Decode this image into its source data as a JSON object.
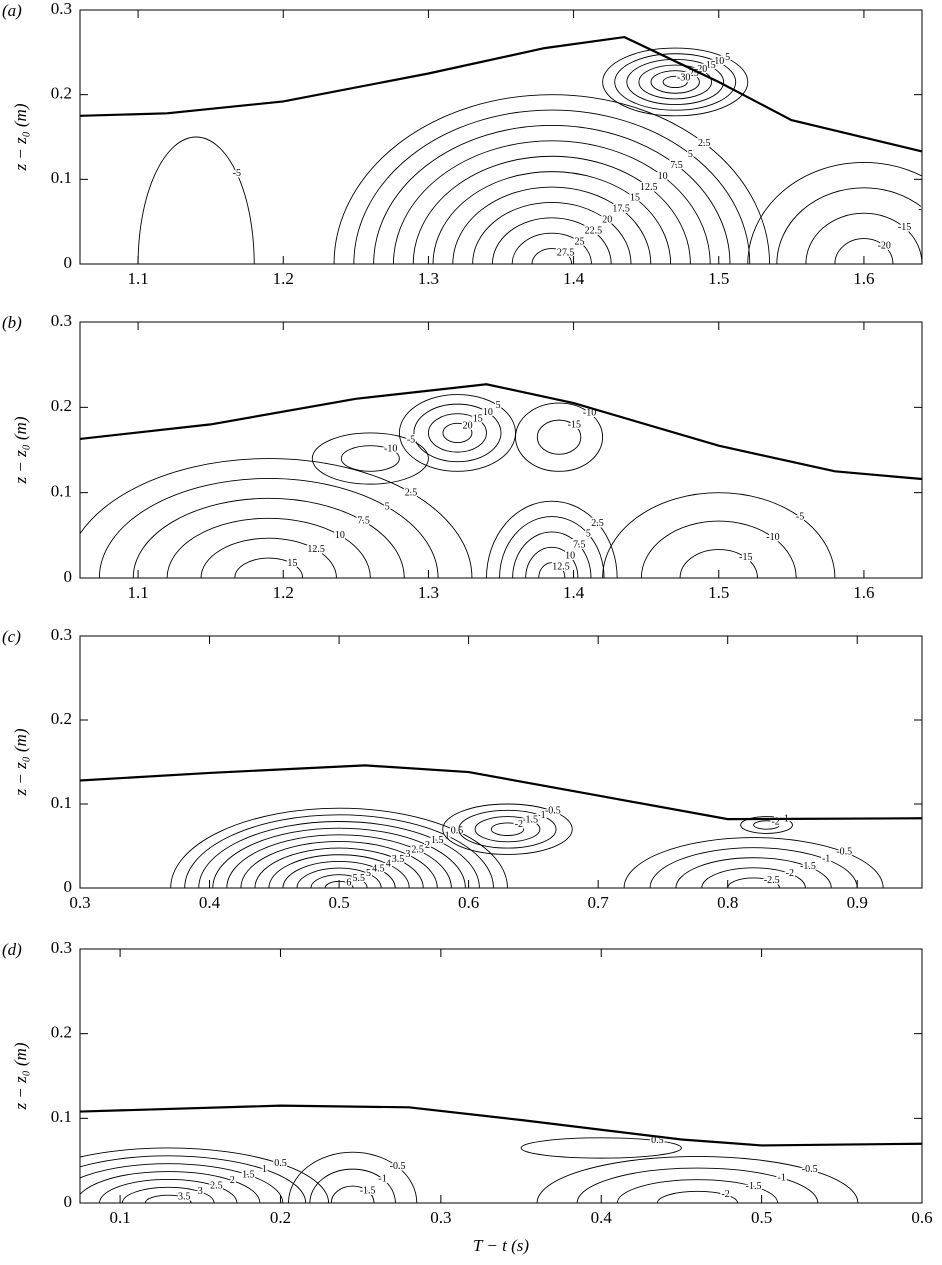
{
  "chart_data": [
    {
      "type": "contour",
      "panel": "(a)",
      "ylabel": "z − z₀ (m)",
      "xlim": [
        1.06,
        1.64
      ],
      "ylim": [
        0,
        0.3
      ],
      "xticks": [
        1.1,
        1.2,
        1.3,
        1.4,
        1.5,
        1.6
      ],
      "yticks": [
        0,
        0.1,
        0.2,
        0.3
      ],
      "surface": {
        "x": [
          1.06,
          1.12,
          1.2,
          1.3,
          1.38,
          1.435,
          1.5,
          1.55,
          1.64
        ],
        "y": [
          0.175,
          0.178,
          0.192,
          0.225,
          0.255,
          0.268,
          0.215,
          0.17,
          0.133
        ]
      },
      "cells": [
        {
          "center": [
            1.385,
            0
          ],
          "radius": [
            0.15,
            0.2
          ],
          "levels": [
            2.5,
            5,
            7.5,
            10,
            12.5,
            15,
            17.5,
            20,
            22.5,
            25,
            27.5
          ]
        },
        {
          "center": [
            1.47,
            0.215
          ],
          "radius": [
            0.05,
            0.04
          ],
          "levels": [
            -5,
            -10,
            -15,
            -20,
            -25,
            -30
          ]
        },
        {
          "center": [
            1.6,
            0
          ],
          "radius": [
            0.08,
            0.12
          ],
          "levels": [
            -5,
            -10,
            -15,
            -20
          ]
        },
        {
          "center": [
            1.14,
            0
          ],
          "radius": [
            0.04,
            0.15
          ],
          "levels": [
            -5
          ]
        }
      ]
    },
    {
      "type": "contour",
      "panel": "(b)",
      "ylabel": "z − z₀ (m)",
      "xlim": [
        1.06,
        1.64
      ],
      "ylim": [
        0,
        0.3
      ],
      "xticks": [
        1.1,
        1.2,
        1.3,
        1.4,
        1.5,
        1.6
      ],
      "yticks": [
        0,
        0.1,
        0.2,
        0.3
      ],
      "surface": {
        "x": [
          1.06,
          1.15,
          1.25,
          1.34,
          1.4,
          1.5,
          1.58,
          1.64
        ],
        "y": [
          0.163,
          0.18,
          0.21,
          0.227,
          0.205,
          0.155,
          0.125,
          0.116
        ]
      },
      "cells": [
        {
          "center": [
            1.19,
            0
          ],
          "radius": [
            0.14,
            0.14
          ],
          "levels": [
            2.5,
            5,
            7.5,
            10,
            12.5,
            15
          ]
        },
        {
          "center": [
            1.32,
            0.17
          ],
          "radius": [
            0.04,
            0.045
          ],
          "levels": [
            5,
            10,
            15,
            20
          ]
        },
        {
          "center": [
            1.385,
            0
          ],
          "radius": [
            0.045,
            0.09
          ],
          "levels": [
            2.5,
            5,
            7.5,
            10,
            12.5
          ]
        },
        {
          "center": [
            1.39,
            0.165
          ],
          "radius": [
            0.03,
            0.04
          ],
          "levels": [
            -10,
            -15
          ]
        },
        {
          "center": [
            1.5,
            0
          ],
          "radius": [
            0.08,
            0.1
          ],
          "levels": [
            -5,
            -10,
            -15
          ]
        },
        {
          "center": [
            1.26,
            0.14
          ],
          "radius": [
            0.04,
            0.03
          ],
          "levels": [
            -5,
            -10
          ]
        }
      ]
    },
    {
      "type": "contour",
      "panel": "(c)",
      "ylabel": "z − z₀ (m)",
      "xlim": [
        0.3,
        0.95
      ],
      "ylim": [
        0,
        0.3
      ],
      "xticks": [
        0.3,
        0.4,
        0.5,
        0.6,
        0.7,
        0.8,
        0.9
      ],
      "yticks": [
        0,
        0.1,
        0.2,
        0.3
      ],
      "surface": {
        "x": [
          0.3,
          0.4,
          0.52,
          0.6,
          0.7,
          0.8,
          0.95
        ],
        "y": [
          0.128,
          0.137,
          0.146,
          0.138,
          0.11,
          0.082,
          0.083
        ]
      },
      "cells": [
        {
          "center": [
            0.5,
            0
          ],
          "radius": [
            0.13,
            0.095
          ],
          "levels": [
            0.5,
            1,
            1.5,
            2,
            2.5,
            3,
            3.5,
            4,
            4.5,
            5,
            5.5,
            6
          ]
        },
        {
          "center": [
            0.63,
            0.07
          ],
          "radius": [
            0.05,
            0.03
          ],
          "levels": [
            -0.5,
            -1,
            -1.5,
            -2
          ]
        },
        {
          "center": [
            0.82,
            0
          ],
          "radius": [
            0.1,
            0.06
          ],
          "levels": [
            -0.5,
            -1,
            -1.5,
            -2,
            -2.5
          ]
        },
        {
          "center": [
            0.83,
            0.075
          ],
          "radius": [
            0.02,
            0.01
          ],
          "levels": [
            -1,
            -2
          ]
        }
      ]
    },
    {
      "type": "contour",
      "panel": "(d)",
      "ylabel": "z − z₀ (m)",
      "xlabel": "T − t (s)",
      "xlim": [
        0.075,
        0.6
      ],
      "ylim": [
        0,
        0.3
      ],
      "xticks": [
        0.1,
        0.2,
        0.3,
        0.4,
        0.5,
        0.6
      ],
      "yticks": [
        0,
        0.1,
        0.2,
        0.3
      ],
      "surface": {
        "x": [
          0.075,
          0.2,
          0.28,
          0.35,
          0.45,
          0.5,
          0.6
        ],
        "y": [
          0.108,
          0.115,
          0.113,
          0.098,
          0.075,
          0.068,
          0.07
        ]
      },
      "cells": [
        {
          "center": [
            0.13,
            0
          ],
          "radius": [
            0.1,
            0.065
          ],
          "levels": [
            0.5,
            1,
            1.5,
            2,
            2.5,
            3,
            3.5
          ]
        },
        {
          "center": [
            0.245,
            0
          ],
          "radius": [
            0.04,
            0.06
          ],
          "levels": [
            -0.5,
            -1,
            -1.5
          ]
        },
        {
          "center": [
            0.46,
            0
          ],
          "radius": [
            0.1,
            0.055
          ],
          "levels": [
            -0.5,
            -1,
            -1.5,
            -2
          ]
        },
        {
          "center": [
            0.4,
            0.065
          ],
          "radius": [
            0.05,
            0.012
          ],
          "levels": [
            0.5
          ]
        }
      ]
    }
  ]
}
